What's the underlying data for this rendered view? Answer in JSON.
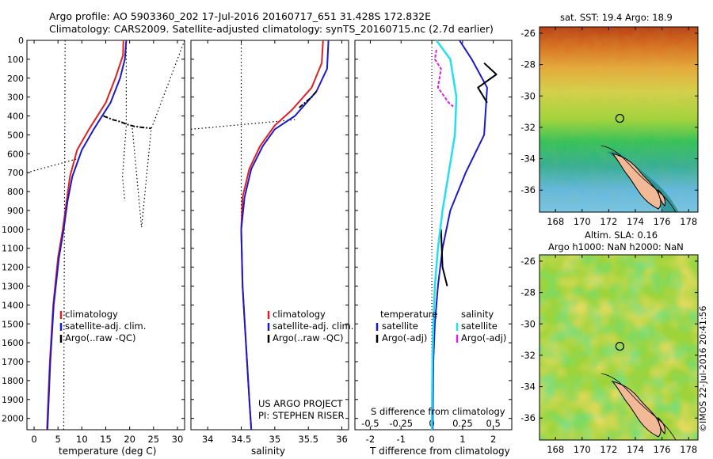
{
  "header": {
    "line1": "Argo profile: AO 5903360_202 17-Jul-2016 20160717_651 31.428S 172.832E",
    "line2": "Climatology: CARS2009. Satellite-adjusted climatology: synTS_20160715.nc (2.7d earlier)"
  },
  "colors": {
    "climatology": "#e02020",
    "satellite": "#1a1acc",
    "argo": "#000000",
    "sal_satellite": "#22e0f0",
    "sal_argo": "#e020e0"
  },
  "depth_axis": {
    "ticks": [
      0,
      100,
      200,
      300,
      400,
      500,
      600,
      700,
      800,
      900,
      1000,
      1100,
      1200,
      1300,
      1400,
      1500,
      1600,
      1700,
      1800,
      1900,
      2000
    ],
    "range": [
      0,
      2060
    ]
  },
  "panels": {
    "temperature": {
      "xlabel": "temperature (deg C)",
      "xticks": [
        "0",
        "5",
        "10",
        "15",
        "20",
        "25",
        "30"
      ],
      "xrange": [
        -1.5,
        31.5
      ],
      "legend": [
        "climatology",
        "satellite-adj. clim.",
        "Argo(..raw -QC)"
      ]
    },
    "salinity": {
      "xlabel": "salinity",
      "xticks": [
        "34",
        "34.5",
        "35",
        "35.5",
        "36"
      ],
      "xrange": [
        33.75,
        36.1
      ],
      "legend": [
        "climatology",
        "satellite-adj. clim.",
        "Argo(..raw -QC)"
      ],
      "project": "US ARGO PROJECT",
      "pi": "PI: STEPHEN RISER"
    },
    "difference": {
      "xlabel": "T difference from climatology",
      "top_label": "S difference from climatology",
      "s_ticks": [
        "-0.5",
        "-0.25",
        "0",
        "0.25",
        "0.5"
      ],
      "t_ticks": [
        "-2",
        "-1",
        "0",
        "1",
        "2"
      ],
      "t_range": [
        -2.5,
        2.6
      ],
      "legend_temp_head": "temperature",
      "legend_sal_head": "salinity",
      "legend_temp": [
        "satellite",
        "Argo(-adj)"
      ],
      "legend_sal": [
        "satellite",
        "Argo(-adj)"
      ]
    }
  },
  "maps": {
    "sst": {
      "title": "sat. SST: 19.4  Argo: 18.9",
      "lat_ticks": [
        "-26",
        "-28",
        "-30",
        "-32",
        "-34",
        "-36"
      ],
      "lon_ticks": [
        "168",
        "170",
        "172",
        "174",
        "176",
        "178"
      ]
    },
    "sla": {
      "title1": "Altim. SLA: 0.16",
      "title2": "Argo h1000: NaN h2000: NaN",
      "lat_ticks": [
        "-26",
        "-28",
        "-30",
        "-32",
        "-34",
        "-36"
      ],
      "lon_ticks": [
        "168",
        "170",
        "172",
        "174",
        "176",
        "178"
      ]
    },
    "argo_position": {
      "lon": 172.832,
      "lat": -31.428
    }
  },
  "footer": {
    "stamp": "©IMOS 22-Jul-2016 20:41:56"
  },
  "chart_data": [
    {
      "type": "line",
      "id": "temperature",
      "xlabel": "temperature (deg C)",
      "ylabel": "",
      "xlim": [
        -1.5,
        31.5
      ],
      "ylim": [
        2060,
        0
      ],
      "series": [
        {
          "name": "climatology",
          "points": [
            [
              18.7,
              0
            ],
            [
              18.6,
              80
            ],
            [
              17.0,
              200
            ],
            [
              15.0,
              330
            ],
            [
              11.5,
              470
            ],
            [
              9.0,
              580
            ],
            [
              7.5,
              720
            ],
            [
              6.8,
              850
            ],
            [
              6.0,
              1000
            ],
            [
              5.0,
              1150
            ],
            [
              4.0,
              1400
            ],
            [
              3.3,
              1700
            ],
            [
              2.8,
              2000
            ],
            [
              2.7,
              2060
            ]
          ]
        },
        {
          "name": "satellite-adj. clim.",
          "points": [
            [
              19.3,
              0
            ],
            [
              19.0,
              100
            ],
            [
              18.0,
              200
            ],
            [
              16.0,
              330
            ],
            [
              12.5,
              470
            ],
            [
              10.0,
              580
            ],
            [
              8.0,
              720
            ],
            [
              7.0,
              850
            ],
            [
              6.2,
              1000
            ],
            [
              5.2,
              1150
            ],
            [
              4.1,
              1400
            ],
            [
              3.4,
              1700
            ],
            [
              2.9,
              2000
            ],
            [
              2.8,
              2060
            ]
          ]
        },
        {
          "name": "Argo(..raw -QC)",
          "points": [
            [
              14.5,
              400
            ],
            [
              16.5,
              420
            ],
            [
              18.0,
              430
            ],
            [
              19.5,
              445
            ],
            [
              21.0,
              455
            ],
            [
              22.5,
              460
            ],
            [
              24.5,
              465
            ]
          ]
        }
      ]
    },
    {
      "type": "line",
      "id": "salinity",
      "xlabel": "salinity",
      "ylabel": "",
      "xlim": [
        33.75,
        36.1
      ],
      "ylim": [
        2060,
        0
      ],
      "series": [
        {
          "name": "climatology",
          "points": [
            [
              35.72,
              0
            ],
            [
              35.7,
              120
            ],
            [
              35.55,
              250
            ],
            [
              35.25,
              370
            ],
            [
              35.0,
              450
            ],
            [
              34.78,
              560
            ],
            [
              34.62,
              680
            ],
            [
              34.52,
              830
            ],
            [
              34.5,
              1000
            ],
            [
              34.52,
              1300
            ],
            [
              34.57,
              1600
            ],
            [
              34.62,
              1900
            ],
            [
              34.65,
              2060
            ]
          ]
        },
        {
          "name": "satellite-adj. clim.",
          "points": [
            [
              35.8,
              0
            ],
            [
              35.78,
              150
            ],
            [
              35.62,
              270
            ],
            [
              35.3,
              400
            ],
            [
              35.0,
              470
            ],
            [
              34.82,
              560
            ],
            [
              34.65,
              680
            ],
            [
              34.55,
              830
            ],
            [
              34.5,
              1000
            ],
            [
              34.52,
              1300
            ],
            [
              34.57,
              1600
            ],
            [
              34.62,
              1900
            ],
            [
              34.65,
              2060
            ]
          ]
        },
        {
          "name": "Argo(..raw -QC)",
          "points": [
            [
              35.62,
              270
            ],
            [
              35.55,
              300
            ],
            [
              35.45,
              330
            ],
            [
              35.35,
              360
            ]
          ]
        }
      ]
    },
    {
      "type": "line",
      "id": "difference",
      "xlabel": "T difference from climatology",
      "ylabel": "",
      "xlim": [
        -2.5,
        2.6
      ],
      "ylim": [
        2060,
        0
      ],
      "series": [
        {
          "name": "satellite",
          "points": [
            [
              0.9,
              0
            ],
            [
              1.3,
              100
            ],
            [
              1.8,
              250
            ],
            [
              1.7,
              500
            ],
            [
              1.1,
              700
            ],
            [
              0.6,
              900
            ],
            [
              0.35,
              1100
            ],
            [
              0.2,
              1300
            ],
            [
              0.1,
              1500
            ],
            [
              0.05,
              1700
            ],
            [
              0.03,
              2060
            ]
          ]
        },
        {
          "name": "Argo(-adj)",
          "points": [
            [
              1.7,
              120
            ],
            [
              2.1,
              180
            ],
            [
              1.5,
              250
            ],
            [
              1.8,
              330
            ],
            [
              0.3,
              1000
            ],
            [
              0.35,
              1200
            ],
            [
              0.5,
              1300
            ]
          ]
        }
      ]
    }
  ]
}
